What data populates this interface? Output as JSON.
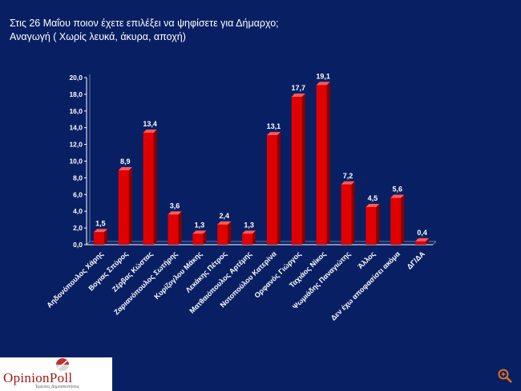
{
  "slide": {
    "title_line1": "Στις 26 Μαΐου ποιον έχετε επιλέξει να ψηφίσετε για Δήμαρχο;",
    "title_line2": "Αναγωγή ( Χωρίς λευκά, άκυρα, αποχή)"
  },
  "logo": {
    "text": "OpinionPoll",
    "subtitle": "Έρευνες Δημοσκοπήσεις"
  },
  "colors": {
    "background": "#082063",
    "bar": "#e00000",
    "bar_dark": "#8a0000",
    "text": "#ffffff"
  },
  "chart_data": {
    "type": "bar",
    "title": "",
    "xlabel": "",
    "ylabel": "",
    "ylim": [
      0,
      20
    ],
    "yticks": [
      "0,0",
      "2,0",
      "4,0",
      "6,0",
      "8,0",
      "10,0",
      "12,0",
      "14,0",
      "16,0",
      "18,0",
      "20,0"
    ],
    "grid": false,
    "categories": [
      "Αηδονόπουλος Χάρης",
      "Βογιας Σπύρος",
      "Ζέρβας Κώστας",
      "Ζαριανόπουλος Σωτήρης",
      "Κυρίζογλου Μάκης",
      "Λεκάκης Πέτρος",
      "Ματθαιόπουλος Αρτέμης",
      "Νοτοπούλου Κατερίνα",
      "Ορφανός Γιώργος",
      "Ταχιάος Νίκος",
      "Ψωμιάδης Παναγιώτης",
      "Άλλος",
      "Δεν έχω αποφασίσει ακόμα",
      "ΔΓ/ΔΑ"
    ],
    "values": [
      1.5,
      8.9,
      13.4,
      3.6,
      1.3,
      2.4,
      1.3,
      13.1,
      17.7,
      19.1,
      7.2,
      4.5,
      5.6,
      0.4
    ],
    "labels": [
      "1,5",
      "8,9",
      "13,4",
      "3,6",
      "1,3",
      "2,4",
      "1,3",
      "13,1",
      "17,7",
      "19,1",
      "7,2",
      "4,5",
      "5,6",
      "0,4"
    ]
  }
}
